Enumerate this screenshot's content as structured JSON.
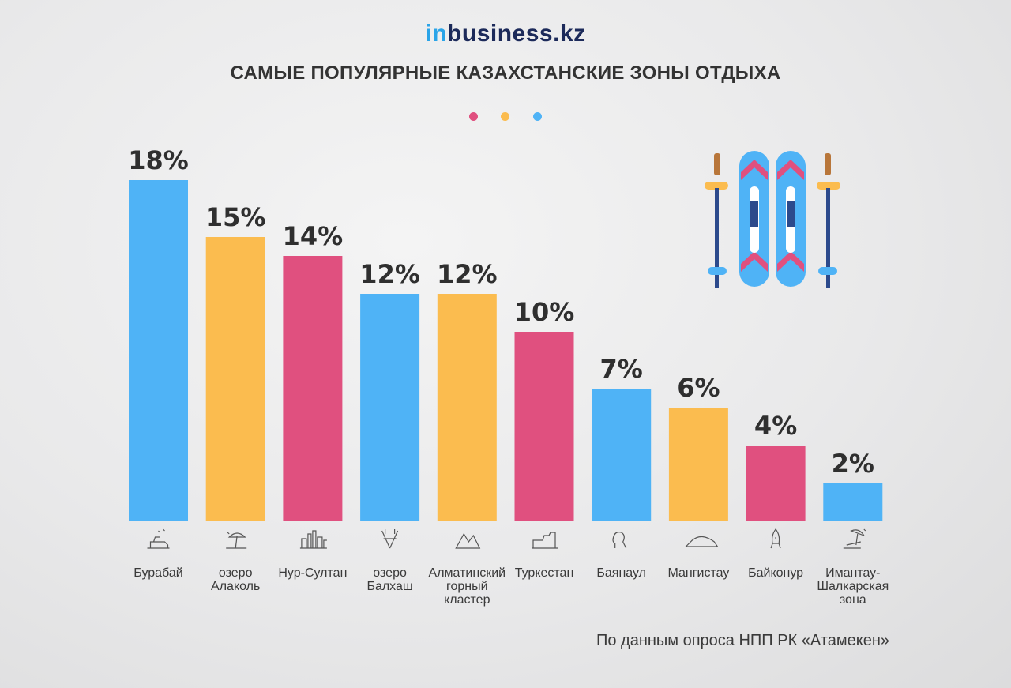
{
  "logo": {
    "prefix": "in",
    "suffix": "business.kz"
  },
  "header": {
    "title": "САМЫЕ ПОПУЛЯРНЫЕ КАЗАХСТАНСКИЕ ЗОНЫ ОТДЫХА"
  },
  "colors": {
    "blue": "#4fb3f6",
    "yellow": "#fbbc4f",
    "pink": "#e0507f",
    "dark": "#2f2f2f"
  },
  "dots": [
    "#e0507f",
    "#fbbc4f",
    "#4fb3f6"
  ],
  "chart_data": {
    "type": "bar",
    "title": "САМЫЕ ПОПУЛЯРНЫЕ КАЗАХСТАНСКИЕ ЗОНЫ ОТДЫХА",
    "xlabel": "",
    "ylabel": "",
    "grid": false,
    "categories": [
      "Бурабай",
      "озеро Алаколь",
      "Нур-Султан",
      "озеро Балхаш",
      "Алматинский горный кластер",
      "Туркестан",
      "Баянаул",
      "Мангистау",
      "Байконур",
      "Имантау-Шалкарская зона"
    ],
    "category_lines": [
      [
        "Бурабай"
      ],
      [
        "озеро",
        "Алаколь"
      ],
      [
        "Нур-Султан"
      ],
      [
        "озеро",
        "Балхаш"
      ],
      [
        "Алматинский",
        "горный",
        "кластер"
      ],
      [
        "Туркестан"
      ],
      [
        "Баянаул"
      ],
      [
        "Мангистау"
      ],
      [
        "Байконур"
      ],
      [
        "Имантау-",
        "Шалкарская",
        "зона"
      ]
    ],
    "values": [
      18,
      15,
      14,
      12,
      12,
      10,
      7,
      6,
      4,
      2
    ],
    "value_labels": [
      "18%",
      "15%",
      "14%",
      "12%",
      "12%",
      "10%",
      "7%",
      "6%",
      "4%",
      "2%"
    ],
    "bar_colors": [
      "#4fb3f6",
      "#fbbc4f",
      "#e0507f",
      "#4fb3f6",
      "#fbbc4f",
      "#e0507f",
      "#4fb3f6",
      "#fbbc4f",
      "#e0507f",
      "#4fb3f6"
    ],
    "icons": [
      "snowmobile-icon",
      "beach-umbrella-icon",
      "city-skyline-icon",
      "fishing-rods-icon",
      "mountains-icon",
      "mausoleum-icon",
      "rock-profile-icon",
      "mesa-icon",
      "rocket-icon",
      "sunbed-icon"
    ]
  },
  "decoration": {
    "icon": "skis-and-poles-icon"
  },
  "source": "По данным опроса НПП РК «Атамекен»"
}
